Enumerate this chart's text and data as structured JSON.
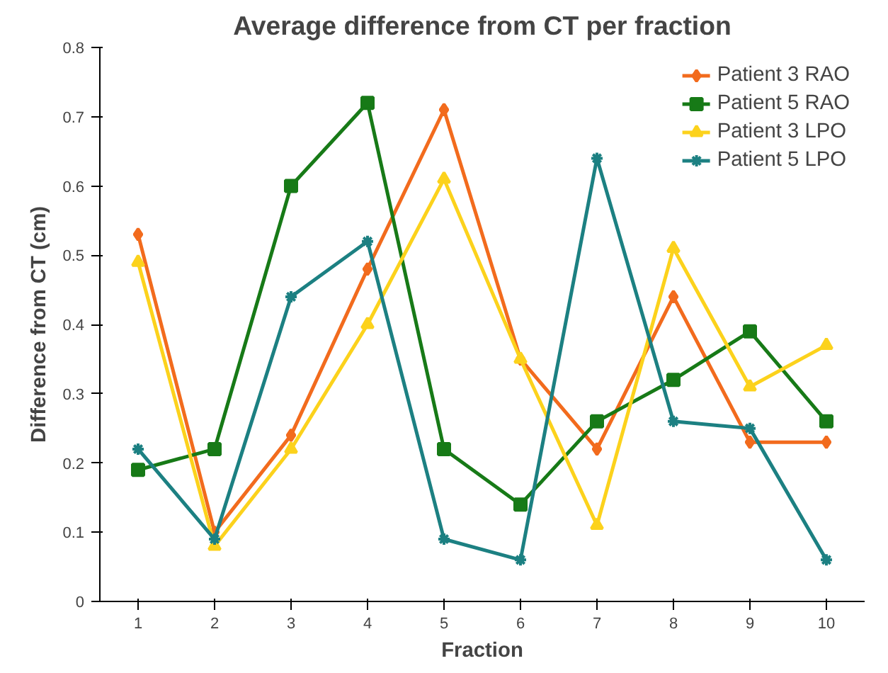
{
  "chart_data": {
    "type": "line",
    "title": "Average difference from CT per fraction",
    "xlabel": "Fraction",
    "ylabel": "Difference from CT (cm)",
    "categories": [
      "1",
      "2",
      "3",
      "4",
      "5",
      "6",
      "7",
      "8",
      "9",
      "10"
    ],
    "ylim": [
      0,
      0.8
    ],
    "yticks": [
      0,
      0.1,
      0.2,
      0.3,
      0.4,
      0.5,
      0.6,
      0.7,
      0.8
    ],
    "grid": false,
    "legend": "top right",
    "line_style": "solid",
    "series": [
      {
        "name": "Patient 3 RAO",
        "color": "#f26b1d",
        "marker": "diamond",
        "values": [
          0.53,
          0.1,
          0.24,
          0.48,
          0.71,
          0.35,
          0.22,
          0.44,
          0.23,
          0.23
        ]
      },
      {
        "name": "Patient 5 RAO",
        "color": "#177a17",
        "marker": "square",
        "values": [
          0.19,
          0.22,
          0.6,
          0.72,
          0.22,
          0.14,
          0.26,
          0.32,
          0.39,
          0.26
        ]
      },
      {
        "name": "Patient 3 LPO",
        "color": "#fcd21c",
        "marker": "triangle",
        "values": [
          0.49,
          0.08,
          0.22,
          0.4,
          0.61,
          0.35,
          0.11,
          0.51,
          0.31,
          0.37
        ]
      },
      {
        "name": "Patient 5 LPO",
        "color": "#1c8082",
        "marker": "cross",
        "values": [
          0.22,
          0.09,
          0.44,
          0.52,
          0.09,
          0.06,
          0.64,
          0.26,
          0.25,
          0.06
        ]
      }
    ]
  }
}
